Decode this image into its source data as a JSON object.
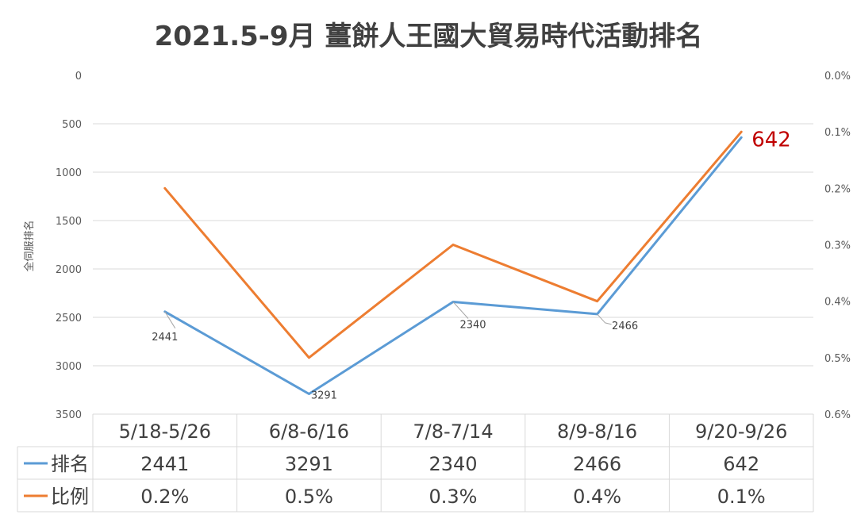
{
  "chart_data": {
    "type": "line",
    "title": "2021.5-9月 薑餅人王國大貿易時代活動排名",
    "ylabel": "全伺服排名",
    "categories": [
      "5/18-5/26",
      "6/8-6/16",
      "7/8-7/14",
      "8/9-8/16",
      "9/20-9/26"
    ],
    "y_left": {
      "range": [
        0,
        3500
      ],
      "inverted": true,
      "ticks": [
        "0",
        "500",
        "1000",
        "1500",
        "2000",
        "2500",
        "3000",
        "3500"
      ]
    },
    "y_right": {
      "range": [
        0,
        0.6
      ],
      "inverted": true,
      "ticks": [
        "0.0%",
        "0.1%",
        "0.2%",
        "0.3%",
        "0.4%",
        "0.5%",
        "0.6%"
      ]
    },
    "series": [
      {
        "name": "排名",
        "axis": "left",
        "color": "#5b9bd5",
        "values": [
          2441,
          3291,
          2340,
          2466,
          642
        ],
        "labels": [
          "2441",
          "3291",
          "2340",
          "2466",
          "642"
        ]
      },
      {
        "name": "比例",
        "axis": "right",
        "color": "#ed7d31",
        "values": [
          0.2,
          0.5,
          0.3,
          0.4,
          0.1
        ],
        "labels": [
          "0.2%",
          "0.5%",
          "0.3%",
          "0.4%",
          "0.1%"
        ]
      }
    ],
    "highlight_label": {
      "text": "642",
      "color": "#c00000"
    },
    "grid": true,
    "data_table": true
  }
}
